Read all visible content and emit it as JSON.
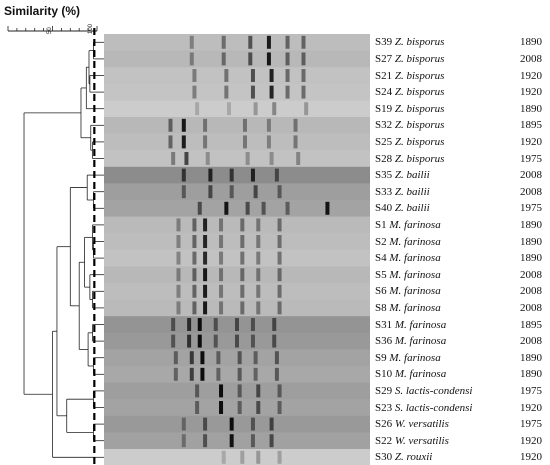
{
  "axis": {
    "title": "Similarity (%)",
    "ticks": [
      "50",
      "100"
    ],
    "cutoff": 97
  },
  "lanes": [
    {
      "id": "S39",
      "species": "Z. bisporus",
      "year": "1890",
      "bg": 0.74
    },
    {
      "id": "S27",
      "species": "Z. bisporus",
      "year": "2008",
      "bg": 0.72
    },
    {
      "id": "S21",
      "species": "Z. bisporus",
      "year": "1920",
      "bg": 0.76
    },
    {
      "id": "S24",
      "species": "Z. bisporus",
      "year": "1920",
      "bg": 0.77
    },
    {
      "id": "S19",
      "species": "Z. bisporus",
      "year": "1890",
      "bg": 0.8
    },
    {
      "id": "S32",
      "species": "Z. bisporus",
      "year": "1895",
      "bg": 0.72
    },
    {
      "id": "S25",
      "species": "Z. bisporus",
      "year": "1920",
      "bg": 0.74
    },
    {
      "id": "S28",
      "species": "Z. bisporus",
      "year": "1975",
      "bg": 0.76
    },
    {
      "id": "S35",
      "species": "Z. bailii",
      "year": "2008",
      "bg": 0.55
    },
    {
      "id": "S33",
      "species": "Z. bailii",
      "year": "2008",
      "bg": 0.62
    },
    {
      "id": "S40",
      "species": "Z. bailii",
      "year": "1975",
      "bg": 0.64
    },
    {
      "id": "S1",
      "species": "M. farinosa",
      "year": "1890",
      "bg": 0.73
    },
    {
      "id": "S2",
      "species": "M. farinosa",
      "year": "1890",
      "bg": 0.74
    },
    {
      "id": "S4",
      "species": "M. farinosa",
      "year": "1890",
      "bg": 0.76
    },
    {
      "id": "S5",
      "species": "M. farinosa",
      "year": "2008",
      "bg": 0.72
    },
    {
      "id": "S6",
      "species": "M. farinosa",
      "year": "2008",
      "bg": 0.74
    },
    {
      "id": "S8",
      "species": "M. farinosa",
      "year": "2008",
      "bg": 0.73
    },
    {
      "id": "S31",
      "species": "M. farinosa",
      "year": "1895",
      "bg": 0.58
    },
    {
      "id": "S36",
      "species": "M. farinosa",
      "year": "2008",
      "bg": 0.6
    },
    {
      "id": "S9",
      "species": "M. farinosa",
      "year": "1890",
      "bg": 0.64
    },
    {
      "id": "S10",
      "species": "M. farinosa",
      "year": "1890",
      "bg": 0.66
    },
    {
      "id": "S29",
      "species": "S. lactis-condensi",
      "year": "1975",
      "bg": 0.62
    },
    {
      "id": "S23",
      "species": "S. lactis-condensi",
      "year": "1920",
      "bg": 0.64
    },
    {
      "id": "S26",
      "species": "W. versatilis",
      "year": "1975",
      "bg": 0.6
    },
    {
      "id": "S22",
      "species": "W. versatilis",
      "year": "1920",
      "bg": 0.63
    },
    {
      "id": "S30",
      "species": "Z. rouxii",
      "year": "1920",
      "bg": 0.8
    }
  ],
  "bands": [
    [
      [
        0.33,
        0.35
      ],
      [
        0.45,
        0.45
      ],
      [
        0.55,
        0.6
      ],
      [
        0.62,
        0.9
      ],
      [
        0.69,
        0.5
      ],
      [
        0.75,
        0.5
      ]
    ],
    [
      [
        0.33,
        0.35
      ],
      [
        0.45,
        0.45
      ],
      [
        0.55,
        0.6
      ],
      [
        0.62,
        0.9
      ],
      [
        0.69,
        0.5
      ],
      [
        0.75,
        0.5
      ]
    ],
    [
      [
        0.34,
        0.4
      ],
      [
        0.46,
        0.45
      ],
      [
        0.56,
        0.65
      ],
      [
        0.63,
        0.9
      ],
      [
        0.69,
        0.5
      ],
      [
        0.75,
        0.5
      ]
    ],
    [
      [
        0.34,
        0.4
      ],
      [
        0.46,
        0.45
      ],
      [
        0.56,
        0.65
      ],
      [
        0.63,
        0.9
      ],
      [
        0.69,
        0.5
      ],
      [
        0.75,
        0.5
      ]
    ],
    [
      [
        0.35,
        0.2
      ],
      [
        0.47,
        0.2
      ],
      [
        0.57,
        0.3
      ],
      [
        0.64,
        0.4
      ],
      [
        0.76,
        0.3
      ]
    ],
    [
      [
        0.25,
        0.5
      ],
      [
        0.3,
        0.9
      ],
      [
        0.38,
        0.4
      ],
      [
        0.53,
        0.4
      ],
      [
        0.62,
        0.35
      ],
      [
        0.72,
        0.4
      ]
    ],
    [
      [
        0.25,
        0.5
      ],
      [
        0.3,
        0.9
      ],
      [
        0.38,
        0.4
      ],
      [
        0.53,
        0.4
      ],
      [
        0.62,
        0.35
      ],
      [
        0.72,
        0.4
      ]
    ],
    [
      [
        0.26,
        0.4
      ],
      [
        0.31,
        0.7
      ],
      [
        0.39,
        0.3
      ],
      [
        0.54,
        0.3
      ],
      [
        0.63,
        0.3
      ],
      [
        0.73,
        0.35
      ]
    ],
    [
      [
        0.3,
        0.5
      ],
      [
        0.4,
        0.6
      ],
      [
        0.48,
        0.5
      ],
      [
        0.56,
        0.6
      ],
      [
        0.65,
        0.4
      ]
    ],
    [
      [
        0.3,
        0.4
      ],
      [
        0.4,
        0.5
      ],
      [
        0.48,
        0.4
      ],
      [
        0.57,
        0.5
      ],
      [
        0.66,
        0.4
      ]
    ],
    [
      [
        0.36,
        0.5
      ],
      [
        0.46,
        0.8
      ],
      [
        0.54,
        0.5
      ],
      [
        0.6,
        0.45
      ],
      [
        0.69,
        0.4
      ],
      [
        0.84,
        0.8
      ]
    ],
    [
      [
        0.28,
        0.35
      ],
      [
        0.34,
        0.5
      ],
      [
        0.38,
        0.85
      ],
      [
        0.44,
        0.4
      ],
      [
        0.52,
        0.45
      ],
      [
        0.58,
        0.4
      ],
      [
        0.66,
        0.45
      ]
    ],
    [
      [
        0.28,
        0.35
      ],
      [
        0.34,
        0.5
      ],
      [
        0.38,
        0.85
      ],
      [
        0.44,
        0.4
      ],
      [
        0.52,
        0.45
      ],
      [
        0.58,
        0.4
      ],
      [
        0.66,
        0.45
      ]
    ],
    [
      [
        0.28,
        0.35
      ],
      [
        0.34,
        0.5
      ],
      [
        0.38,
        0.85
      ],
      [
        0.44,
        0.4
      ],
      [
        0.52,
        0.45
      ],
      [
        0.58,
        0.4
      ],
      [
        0.66,
        0.45
      ]
    ],
    [
      [
        0.28,
        0.35
      ],
      [
        0.34,
        0.5
      ],
      [
        0.38,
        0.9
      ],
      [
        0.44,
        0.4
      ],
      [
        0.52,
        0.45
      ],
      [
        0.58,
        0.4
      ],
      [
        0.66,
        0.45
      ]
    ],
    [
      [
        0.28,
        0.35
      ],
      [
        0.34,
        0.5
      ],
      [
        0.38,
        0.9
      ],
      [
        0.44,
        0.4
      ],
      [
        0.52,
        0.45
      ],
      [
        0.58,
        0.4
      ],
      [
        0.66,
        0.45
      ]
    ],
    [
      [
        0.28,
        0.35
      ],
      [
        0.34,
        0.5
      ],
      [
        0.38,
        0.9
      ],
      [
        0.44,
        0.4
      ],
      [
        0.52,
        0.45
      ],
      [
        0.58,
        0.4
      ],
      [
        0.66,
        0.45
      ]
    ],
    [
      [
        0.26,
        0.4
      ],
      [
        0.32,
        0.6
      ],
      [
        0.36,
        0.9
      ],
      [
        0.42,
        0.4
      ],
      [
        0.5,
        0.45
      ],
      [
        0.56,
        0.4
      ],
      [
        0.64,
        0.45
      ]
    ],
    [
      [
        0.26,
        0.4
      ],
      [
        0.32,
        0.6
      ],
      [
        0.36,
        0.9
      ],
      [
        0.42,
        0.4
      ],
      [
        0.5,
        0.45
      ],
      [
        0.56,
        0.4
      ],
      [
        0.64,
        0.45
      ]
    ],
    [
      [
        0.27,
        0.4
      ],
      [
        0.33,
        0.6
      ],
      [
        0.37,
        0.9
      ],
      [
        0.43,
        0.4
      ],
      [
        0.51,
        0.45
      ],
      [
        0.57,
        0.4
      ],
      [
        0.65,
        0.45
      ]
    ],
    [
      [
        0.27,
        0.4
      ],
      [
        0.33,
        0.6
      ],
      [
        0.37,
        0.9
      ],
      [
        0.43,
        0.4
      ],
      [
        0.51,
        0.45
      ],
      [
        0.57,
        0.4
      ],
      [
        0.65,
        0.45
      ]
    ],
    [
      [
        0.35,
        0.4
      ],
      [
        0.44,
        0.9
      ],
      [
        0.51,
        0.4
      ],
      [
        0.58,
        0.5
      ],
      [
        0.66,
        0.4
      ]
    ],
    [
      [
        0.35,
        0.4
      ],
      [
        0.44,
        0.9
      ],
      [
        0.51,
        0.4
      ],
      [
        0.58,
        0.5
      ],
      [
        0.66,
        0.4
      ]
    ],
    [
      [
        0.3,
        0.3
      ],
      [
        0.38,
        0.45
      ],
      [
        0.48,
        0.8
      ],
      [
        0.56,
        0.4
      ],
      [
        0.63,
        0.5
      ]
    ],
    [
      [
        0.3,
        0.3
      ],
      [
        0.38,
        0.45
      ],
      [
        0.48,
        0.8
      ],
      [
        0.56,
        0.4
      ],
      [
        0.63,
        0.5
      ]
    ],
    [
      [
        0.45,
        0.2
      ],
      [
        0.52,
        0.25
      ],
      [
        0.58,
        0.3
      ],
      [
        0.66,
        0.25
      ]
    ]
  ],
  "dendrogram": {
    "leaf_x": 97,
    "nodes": [
      [
        96,
        0,
        1
      ],
      [
        92,
        2,
        3
      ],
      [
        91,
        26,
        27
      ],
      [
        88,
        28,
        4
      ],
      [
        95,
        6,
        7
      ],
      [
        93,
        5,
        30
      ],
      [
        82,
        29,
        31
      ],
      [
        96,
        9,
        10
      ],
      [
        89,
        8,
        33
      ],
      [
        96,
        12,
        13
      ],
      [
        95,
        11,
        35
      ],
      [
        95,
        15,
        16
      ],
      [
        92,
        37,
        14
      ],
      [
        86,
        38,
        36
      ],
      [
        95,
        17,
        18
      ],
      [
        96,
        19,
        20
      ],
      [
        90,
        40,
        41
      ],
      [
        80,
        39,
        42
      ],
      [
        70,
        34,
        43
      ],
      [
        96,
        21,
        22
      ],
      [
        96,
        23,
        24
      ],
      [
        66,
        45,
        46
      ],
      [
        55,
        44,
        47
      ],
      [
        50,
        48,
        25
      ],
      [
        18,
        32,
        49
      ]
    ]
  }
}
